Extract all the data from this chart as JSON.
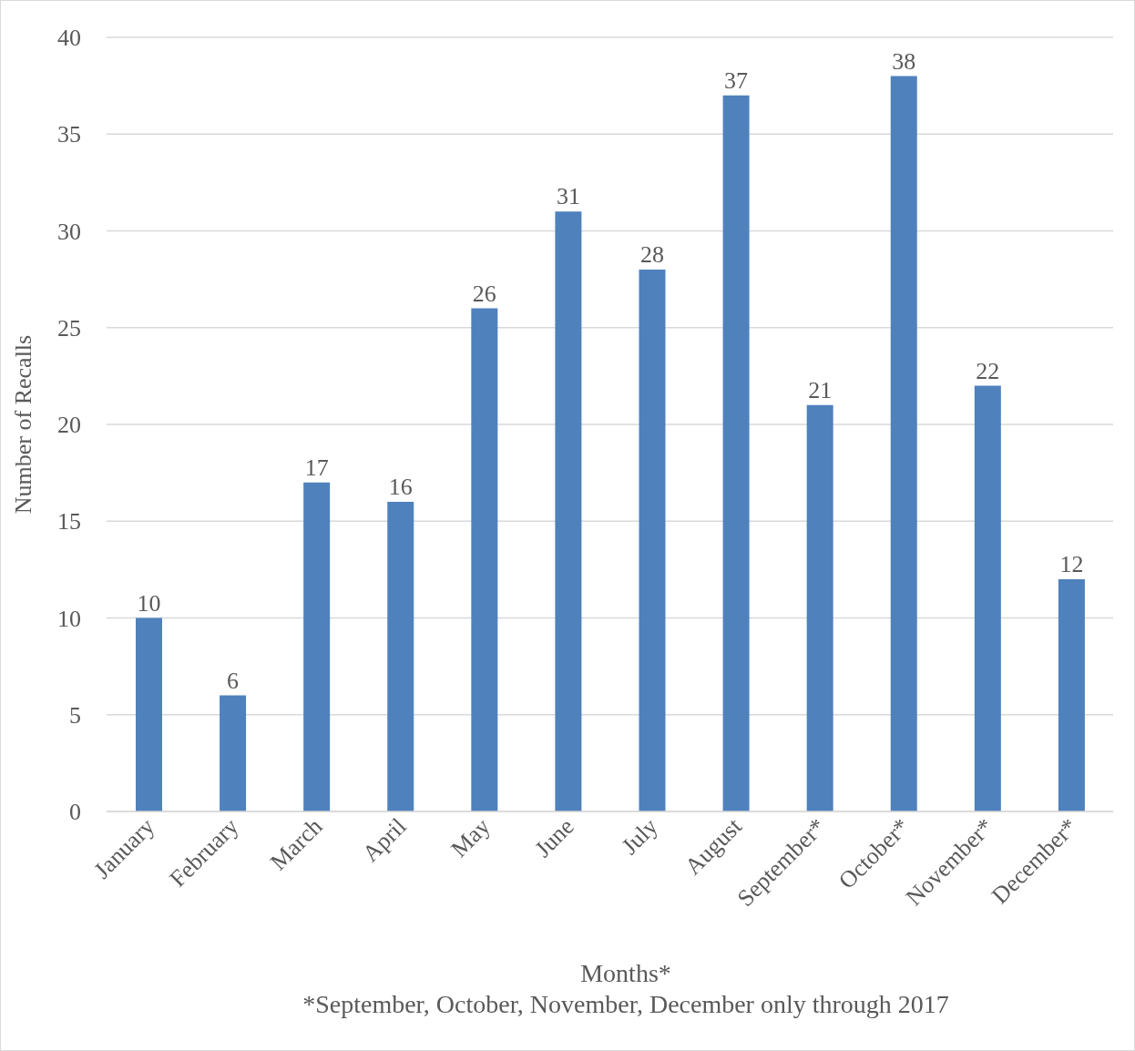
{
  "chart_data": {
    "type": "bar",
    "xlabel": "Months*",
    "ylabel": "Number of Recalls",
    "categories": [
      "January",
      "February",
      "March",
      "April",
      "May",
      "June",
      "July",
      "August",
      "September*",
      "October*",
      "November*",
      "December*"
    ],
    "values": [
      10,
      6,
      17,
      16,
      26,
      31,
      28,
      37,
      21,
      38,
      22,
      12
    ],
    "color": "#4f81bd",
    "ylim": [
      0,
      40
    ],
    "yticks": [
      0,
      5,
      10,
      15,
      20,
      25,
      30,
      35,
      40
    ],
    "grid": "y",
    "data_labels": true,
    "annotations": [
      "*September, October, November, December only through 2017"
    ]
  }
}
